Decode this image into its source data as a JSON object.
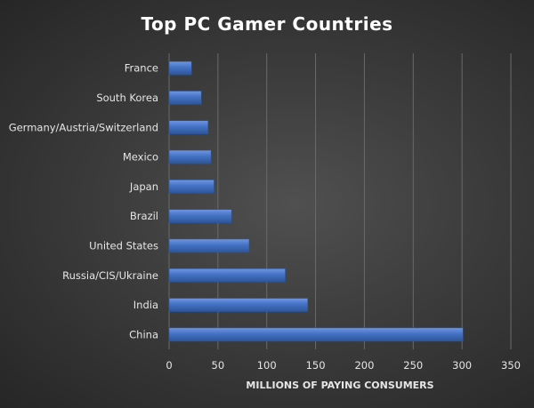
{
  "chart_data": {
    "type": "bar",
    "orientation": "horizontal",
    "title": "Top PC Gamer Countries",
    "xlabel": "MILLIONS OF PAYING CONSUMERS",
    "ylabel": "",
    "categories": [
      "France",
      "South Korea",
      "Germany/Austria/Switzerland",
      "Mexico",
      "Japan",
      "Brazil",
      "United States",
      "Russia/CIS/Ukraine",
      "India",
      "China"
    ],
    "values": [
      23,
      33,
      40,
      43,
      46,
      64,
      82,
      119,
      142,
      301
    ],
    "xlim": [
      0,
      350
    ],
    "x_ticks": [
      0,
      50,
      100,
      150,
      200,
      250,
      300,
      350
    ],
    "x_tick_labels": [
      "0",
      "50",
      "100",
      "150",
      "200",
      "250",
      "300",
      "350"
    ],
    "grid": true,
    "legend": false,
    "colors": {
      "bar": "#4472c4",
      "bar_highlight": "#6f96e4",
      "bar_shadow": "#2d5597",
      "text": "#e6e6e6",
      "title": "#ffffff",
      "grid": "#6a6a6a"
    }
  }
}
